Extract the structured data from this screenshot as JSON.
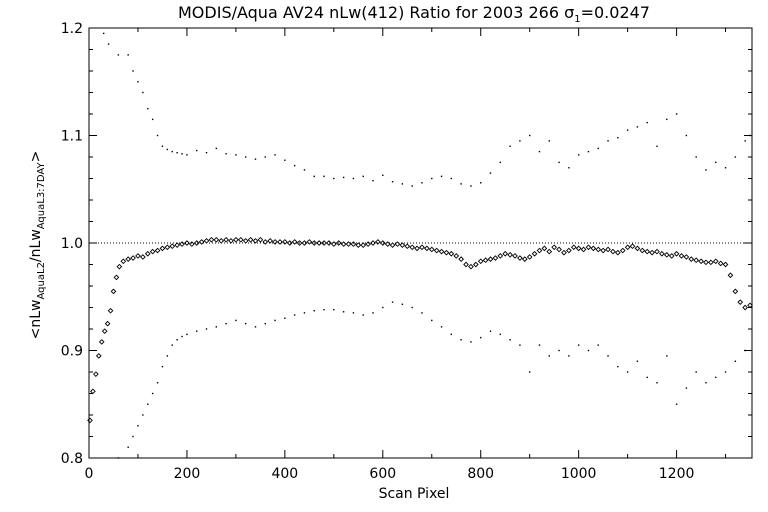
{
  "chart_data": {
    "type": "scatter",
    "title": "MODIS/Aqua AV24 nLw(412) Ratio for 2003 266 σ₁=0.0247",
    "title_parts": {
      "prefix": "MODIS/Aqua AV24 nLw(412) Ratio for 2003 266 ",
      "sigma": "σ",
      "sigma_sub": "1",
      "suffix": "=0.0247"
    },
    "xlabel": "Scan Pixel",
    "ylabel": "<nLw_AquaL2/nLw_AquaL3:7DAY>",
    "ylabel_parts": {
      "open": "<nLw",
      "sub1": "AquaL2",
      "mid": "/nLw",
      "sub2": "AquaL3:7DAY",
      "close": ">"
    },
    "xlim": [
      0,
      1354
    ],
    "ylim": [
      0.8,
      1.2
    ],
    "xticks": [
      0,
      200,
      400,
      600,
      800,
      1000,
      1200
    ],
    "xtick_labels": [
      "0",
      "200",
      "400",
      "600",
      "800",
      "1000",
      "1200"
    ],
    "yticks": [
      0.8,
      0.9,
      1.0,
      1.1,
      1.2
    ],
    "ytick_labels": [
      "0.8",
      "0.9",
      "1.0",
      "1.1",
      "1.2"
    ],
    "reference_line": 1.0,
    "colors": {
      "foreground": "#000000",
      "background": "#ffffff"
    },
    "series": [
      {
        "role": "mean-ratio",
        "marker": "diamond",
        "x": [
          2,
          8,
          14,
          20,
          26,
          32,
          38,
          44,
          50,
          56,
          62,
          70,
          80,
          90,
          100,
          110,
          120,
          130,
          140,
          150,
          160,
          170,
          180,
          190,
          200,
          210,
          220,
          230,
          240,
          250,
          260,
          270,
          280,
          290,
          300,
          310,
          320,
          330,
          340,
          350,
          360,
          370,
          380,
          390,
          400,
          410,
          420,
          430,
          440,
          450,
          460,
          470,
          480,
          490,
          500,
          510,
          520,
          530,
          540,
          550,
          560,
          570,
          580,
          590,
          600,
          610,
          620,
          630,
          640,
          650,
          660,
          670,
          680,
          690,
          700,
          710,
          720,
          730,
          740,
          750,
          760,
          770,
          780,
          790,
          800,
          810,
          820,
          830,
          840,
          850,
          860,
          870,
          880,
          890,
          900,
          910,
          920,
          930,
          940,
          950,
          960,
          970,
          980,
          990,
          1000,
          1010,
          1020,
          1030,
          1040,
          1050,
          1060,
          1070,
          1080,
          1090,
          1100,
          1110,
          1120,
          1130,
          1140,
          1150,
          1160,
          1170,
          1180,
          1190,
          1200,
          1210,
          1220,
          1230,
          1240,
          1250,
          1260,
          1270,
          1280,
          1290,
          1300,
          1310,
          1320,
          1330,
          1340,
          1350
        ],
        "y": [
          0.835,
          0.862,
          0.878,
          0.895,
          0.908,
          0.918,
          0.925,
          0.937,
          0.955,
          0.968,
          0.978,
          0.983,
          0.985,
          0.986,
          0.988,
          0.987,
          0.99,
          0.992,
          0.993,
          0.995,
          0.996,
          0.997,
          0.998,
          0.999,
          1.0,
          0.999,
          1.0,
          1.001,
          1.002,
          1.003,
          1.003,
          1.002,
          1.003,
          1.002,
          1.003,
          1.003,
          1.002,
          1.003,
          1.002,
          1.003,
          1.001,
          1.002,
          1.001,
          1.001,
          1.001,
          1.0,
          1.001,
          1.0,
          1.0,
          1.001,
          1.0,
          1.0,
          1.0,
          1.0,
          0.999,
          1.0,
          0.999,
          0.999,
          0.999,
          0.998,
          0.998,
          0.999,
          1.0,
          1.001,
          1.0,
          0.999,
          0.998,
          0.999,
          0.998,
          0.997,
          0.996,
          0.995,
          0.996,
          0.995,
          0.994,
          0.993,
          0.992,
          0.991,
          0.99,
          0.988,
          0.985,
          0.98,
          0.978,
          0.98,
          0.983,
          0.984,
          0.985,
          0.986,
          0.988,
          0.99,
          0.989,
          0.988,
          0.986,
          0.985,
          0.987,
          0.99,
          0.993,
          0.995,
          0.992,
          0.996,
          0.994,
          0.991,
          0.993,
          0.996,
          0.995,
          0.994,
          0.996,
          0.995,
          0.994,
          0.993,
          0.994,
          0.992,
          0.991,
          0.993,
          0.996,
          0.997,
          0.995,
          0.993,
          0.992,
          0.991,
          0.992,
          0.99,
          0.989,
          0.988,
          0.99,
          0.988,
          0.987,
          0.985,
          0.984,
          0.983,
          0.982,
          0.982,
          0.983,
          0.981,
          0.98,
          0.97,
          0.955,
          0.945,
          0.94,
          0.942
        ]
      },
      {
        "role": "upper-bound",
        "marker": "dot",
        "x": [
          20,
          30,
          40,
          60,
          80,
          90,
          100,
          110,
          120,
          130,
          140,
          150,
          160,
          170,
          180,
          190,
          200,
          220,
          240,
          260,
          280,
          300,
          320,
          340,
          360,
          380,
          400,
          420,
          440,
          460,
          480,
          500,
          520,
          540,
          560,
          580,
          600,
          620,
          640,
          660,
          680,
          700,
          720,
          740,
          760,
          780,
          800,
          820,
          840,
          860,
          880,
          900,
          920,
          940,
          960,
          980,
          1000,
          1020,
          1040,
          1060,
          1080,
          1100,
          1120,
          1140,
          1160,
          1180,
          1200,
          1220,
          1240,
          1260,
          1280,
          1300,
          1320,
          1340,
          1350
        ],
        "y": [
          1.205,
          1.195,
          1.185,
          1.175,
          1.175,
          1.16,
          1.15,
          1.14,
          1.125,
          1.115,
          1.1,
          1.09,
          1.087,
          1.085,
          1.084,
          1.083,
          1.082,
          1.086,
          1.084,
          1.088,
          1.083,
          1.082,
          1.08,
          1.078,
          1.08,
          1.082,
          1.077,
          1.072,
          1.068,
          1.062,
          1.062,
          1.06,
          1.061,
          1.06,
          1.062,
          1.058,
          1.063,
          1.057,
          1.055,
          1.053,
          1.056,
          1.06,
          1.062,
          1.06,
          1.055,
          1.053,
          1.056,
          1.065,
          1.075,
          1.09,
          1.095,
          1.1,
          1.085,
          1.095,
          1.075,
          1.07,
          1.082,
          1.085,
          1.088,
          1.095,
          1.098,
          1.105,
          1.108,
          1.112,
          1.09,
          1.115,
          1.12,
          1.1,
          1.08,
          1.068,
          1.075,
          1.07,
          1.08,
          1.095,
          1.1
        ]
      },
      {
        "role": "lower-bound",
        "marker": "dot",
        "x": [
          60,
          80,
          90,
          100,
          110,
          120,
          130,
          140,
          150,
          160,
          170,
          180,
          190,
          200,
          220,
          240,
          260,
          280,
          300,
          320,
          340,
          360,
          380,
          400,
          420,
          440,
          460,
          480,
          500,
          520,
          540,
          560,
          580,
          600,
          620,
          640,
          660,
          680,
          700,
          720,
          740,
          760,
          780,
          800,
          820,
          840,
          860,
          880,
          900,
          920,
          940,
          960,
          980,
          1000,
          1020,
          1040,
          1060,
          1080,
          1100,
          1120,
          1140,
          1160,
          1180,
          1200,
          1220,
          1240,
          1260,
          1280,
          1300,
          1320,
          1340
        ],
        "y": [
          0.8,
          0.81,
          0.82,
          0.83,
          0.84,
          0.85,
          0.86,
          0.87,
          0.885,
          0.895,
          0.905,
          0.91,
          0.913,
          0.915,
          0.918,
          0.92,
          0.922,
          0.925,
          0.928,
          0.925,
          0.922,
          0.925,
          0.928,
          0.93,
          0.933,
          0.935,
          0.937,
          0.938,
          0.938,
          0.936,
          0.935,
          0.933,
          0.935,
          0.94,
          0.945,
          0.943,
          0.94,
          0.935,
          0.928,
          0.922,
          0.915,
          0.91,
          0.908,
          0.912,
          0.918,
          0.915,
          0.91,
          0.905,
          0.88,
          0.905,
          0.895,
          0.9,
          0.895,
          0.905,
          0.9,
          0.905,
          0.895,
          0.885,
          0.88,
          0.89,
          0.875,
          0.87,
          0.895,
          0.85,
          0.865,
          0.88,
          0.87,
          0.875,
          0.88,
          0.89,
          0.9
        ]
      }
    ]
  }
}
